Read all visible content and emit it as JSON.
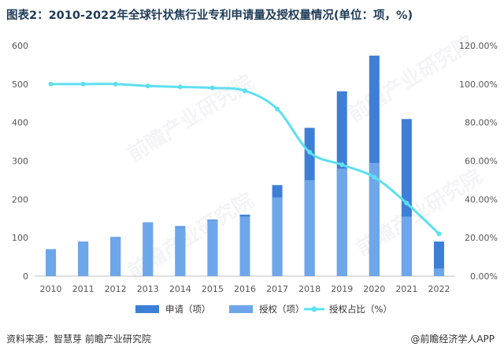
{
  "title": "图表2：2010-2022年全球针状焦行业专利申请量及授权量情况(单位：项，%)",
  "source": "资料来源：智慧芽 前瞻产业研究院",
  "brand": "@前瞻经济学人APP",
  "watermark": "前瞻产业研究院",
  "colors": {
    "apply": "#3d7fd6",
    "grant": "#6ea6ea",
    "ratio": "#5ce0f0",
    "axis": "#bfbfbf",
    "text": "#555555"
  },
  "chart_data": {
    "type": "bar",
    "categories": [
      "2010",
      "2011",
      "2012",
      "2013",
      "2014",
      "2015",
      "2016",
      "2017",
      "2018",
      "2019",
      "2020",
      "2021",
      "2022"
    ],
    "series": [
      {
        "name": "申请（项）",
        "type": "bar",
        "values": [
          70,
          90,
          102,
          140,
          130,
          147,
          160,
          237,
          386,
          481,
          574,
          409,
          90
        ]
      },
      {
        "name": "授权（项）",
        "type": "bar",
        "values": [
          70,
          90,
          102,
          140,
          128,
          145,
          155,
          205,
          250,
          280,
          295,
          155,
          20
        ]
      },
      {
        "name": "授权占比（%）",
        "type": "line",
        "values": [
          100,
          100,
          100,
          99,
          98.5,
          98,
          96.5,
          87,
          64.5,
          58,
          51.5,
          38,
          22
        ]
      }
    ],
    "y_left_ticks": [
      "0",
      "100",
      "200",
      "300",
      "400",
      "500",
      "600"
    ],
    "y_right_ticks": [
      "0.00%",
      "20.00%",
      "40.00%",
      "60.00%",
      "80.00%",
      "100.00%",
      "120.00%"
    ],
    "ylim_left": [
      0,
      600
    ],
    "ylim_right": [
      0,
      120
    ],
    "legend_position": "bottom",
    "grid": false
  }
}
